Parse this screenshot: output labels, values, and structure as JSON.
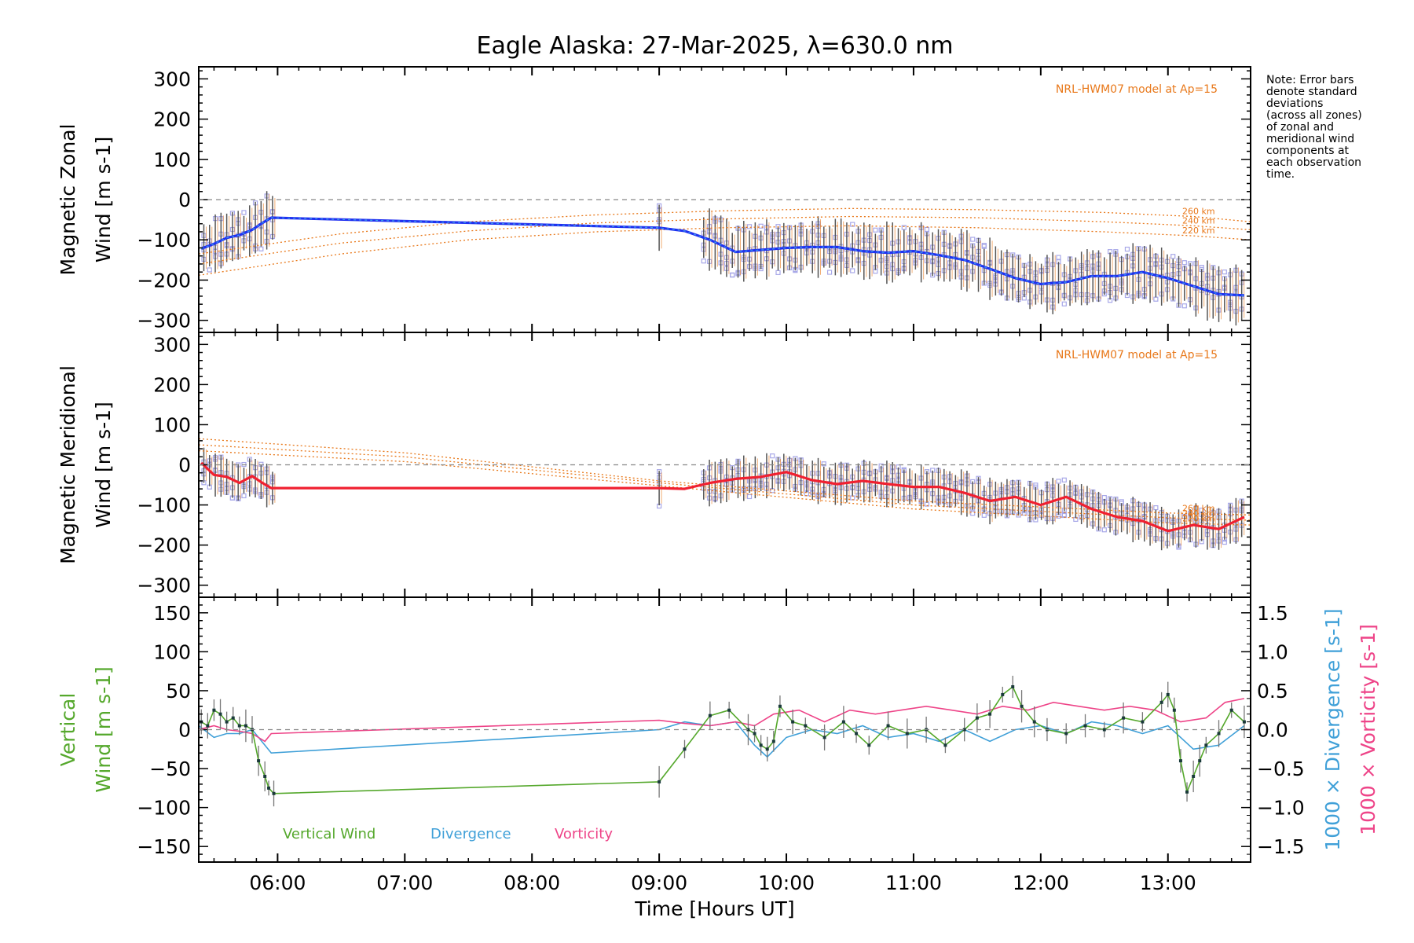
{
  "title": "Eagle Alaska: 27-Mar-2025, λ=630.0 nm",
  "xlabel": "Time [Hours UT]",
  "xticks": [
    "06:00",
    "07:00",
    "08:00",
    "09:00",
    "10:00",
    "11:00",
    "12:00",
    "13:00"
  ],
  "note_lines": [
    "Note: Error bars",
    "denote standard",
    "deviations",
    "(across all zones)",
    "of zonal and",
    "meridional wind",
    "components at",
    "each observation",
    "time."
  ],
  "colors": {
    "zonal": "#2030f0",
    "zonal_light": "#3aa0ee",
    "meridional": "#f02030",
    "model": "#e8781a",
    "scatter": "#a8a8e8",
    "vertical": "#55a82c",
    "divergence": "#40a0d8",
    "vorticity": "#ee4488",
    "errbar": "#555555"
  },
  "chart_data": [
    {
      "type": "line",
      "panel": "zonal",
      "ylabel_lines": [
        "Magnetic Zonal",
        "Wind [m s-1]"
      ],
      "xlim": [
        5.38,
        13.65
      ],
      "ylim": [
        -330,
        330
      ],
      "yticks": [
        -300,
        -200,
        -100,
        0,
        100,
        200,
        300
      ],
      "model_label": "NRL-HWM07 model at Ap=15",
      "model_altitudes": [
        "260 km",
        "240 km",
        "220 km"
      ],
      "series": [
        {
          "name": "Zonal wind",
          "x": [
            5.4,
            5.5,
            5.6,
            5.7,
            5.8,
            5.88,
            5.95,
            9.0,
            9.2,
            9.4,
            9.6,
            9.8,
            10.0,
            10.2,
            10.4,
            10.6,
            10.8,
            11.0,
            11.2,
            11.4,
            11.6,
            11.8,
            12.0,
            12.2,
            12.4,
            12.6,
            12.8,
            13.0,
            13.2,
            13.4,
            13.6
          ],
          "y": [
            -122,
            -110,
            -95,
            -88,
            -75,
            -58,
            -45,
            -70,
            -78,
            -100,
            -130,
            -125,
            -120,
            -118,
            -118,
            -128,
            -132,
            -128,
            -138,
            -150,
            -172,
            -195,
            -210,
            -205,
            -190,
            -190,
            -180,
            -195,
            -215,
            -235,
            -238
          ]
        },
        {
          "name": "Zonal error bar",
          "err": 60
        },
        {
          "name": "HWM07 260 km",
          "x": [
            5.38,
            6.5,
            7.5,
            8.5,
            9.5,
            10.5,
            11.5,
            12.5,
            13.2,
            13.65
          ],
          "y": [
            -135,
            -85,
            -55,
            -38,
            -28,
            -22,
            -25,
            -32,
            -42,
            -55
          ]
        },
        {
          "name": "HWM07 240 km",
          "x": [
            5.38,
            6.5,
            7.5,
            8.5,
            9.5,
            10.5,
            11.5,
            12.5,
            13.2,
            13.65
          ],
          "y": [
            -160,
            -108,
            -78,
            -58,
            -48,
            -42,
            -45,
            -55,
            -65,
            -75
          ]
        },
        {
          "name": "HWM07 220 km",
          "x": [
            5.38,
            6.5,
            7.5,
            8.5,
            9.5,
            10.5,
            11.5,
            12.5,
            13.2,
            13.65
          ],
          "y": [
            -188,
            -135,
            -100,
            -80,
            -70,
            -65,
            -70,
            -80,
            -90,
            -100
          ]
        }
      ]
    },
    {
      "type": "line",
      "panel": "meridional",
      "ylabel_lines": [
        "Magnetic Meridional",
        "Wind [m s-1]"
      ],
      "xlim": [
        5.38,
        13.65
      ],
      "ylim": [
        -330,
        330
      ],
      "yticks": [
        -300,
        -200,
        -100,
        0,
        100,
        200,
        300
      ],
      "model_label": "NRL-HWM07 model at Ap=15",
      "model_altitudes": [
        "260 km",
        "240 km",
        "220 km"
      ],
      "series": [
        {
          "name": "Meridional wind",
          "x": [
            5.4,
            5.5,
            5.6,
            5.7,
            5.8,
            5.88,
            5.95,
            9.0,
            9.2,
            9.4,
            9.6,
            9.8,
            10.0,
            10.2,
            10.4,
            10.6,
            10.8,
            11.0,
            11.2,
            11.4,
            11.6,
            11.8,
            12.0,
            12.2,
            12.4,
            12.6,
            12.8,
            13.0,
            13.2,
            13.4,
            13.6
          ],
          "y": [
            5,
            -25,
            -30,
            -45,
            -28,
            -45,
            -58,
            -58,
            -60,
            -45,
            -35,
            -30,
            -18,
            -38,
            -48,
            -40,
            -48,
            -55,
            -55,
            -70,
            -90,
            -80,
            -100,
            -80,
            -110,
            -130,
            -140,
            -165,
            -150,
            -160,
            -130
          ]
        },
        {
          "name": "Meridional error bar",
          "err": 45
        },
        {
          "name": "HWM07 260 km",
          "x": [
            5.38,
            7.0,
            9.0,
            11.0,
            13.0,
            13.65
          ],
          "y": [
            65,
            30,
            -40,
            -90,
            -120,
            -125
          ]
        },
        {
          "name": "HWM07 240 km",
          "x": [
            5.38,
            7.0,
            9.0,
            11.0,
            13.0,
            13.65
          ],
          "y": [
            50,
            20,
            -45,
            -100,
            -132,
            -138
          ]
        },
        {
          "name": "HWM07 220 km",
          "x": [
            5.38,
            7.0,
            9.0,
            11.0,
            13.0,
            13.65
          ],
          "y": [
            35,
            8,
            -52,
            -110,
            -145,
            -150
          ]
        }
      ]
    },
    {
      "type": "line",
      "panel": "vertical",
      "ylabel_lines": [
        "Vertical",
        "Wind [m s-1]"
      ],
      "y2label_divergence": "1000 × Divergence [s-1]",
      "y2label_vorticity": "1000 × Vorticity [s-1]",
      "xlim": [
        5.38,
        13.65
      ],
      "ylim": [
        -170,
        170
      ],
      "yticks": [
        -150,
        -100,
        -50,
        0,
        50,
        100,
        150
      ],
      "y2lim": [
        -1.7,
        1.7
      ],
      "y2ticks": [
        "-1.5",
        "-1.0",
        "-0.5",
        "0.0",
        "0.5",
        "1.0",
        "1.5"
      ],
      "legend": [
        "Vertical Wind",
        "Divergence",
        "Vorticity"
      ],
      "series": [
        {
          "name": "Vertical Wind",
          "x": [
            5.4,
            5.45,
            5.5,
            5.55,
            5.6,
            5.65,
            5.7,
            5.75,
            5.8,
            5.85,
            5.9,
            5.93,
            5.97,
            9.0,
            9.2,
            9.4,
            9.55,
            9.7,
            9.75,
            9.8,
            9.85,
            9.9,
            9.95,
            10.05,
            10.15,
            10.3,
            10.45,
            10.55,
            10.65,
            10.8,
            10.95,
            11.1,
            11.25,
            11.4,
            11.5,
            11.6,
            11.7,
            11.78,
            11.85,
            11.95,
            12.05,
            12.2,
            12.35,
            12.5,
            12.65,
            12.8,
            12.95,
            13.0,
            13.05,
            13.1,
            13.15,
            13.2,
            13.25,
            13.3,
            13.4,
            13.5,
            13.6
          ],
          "y": [
            10,
            5,
            25,
            20,
            10,
            15,
            5,
            5,
            0,
            -40,
            -60,
            -75,
            -82,
            -67,
            -25,
            18,
            25,
            0,
            -5,
            -20,
            -25,
            -15,
            30,
            10,
            5,
            -10,
            10,
            -5,
            -20,
            5,
            -5,
            0,
            -20,
            0,
            15,
            20,
            45,
            55,
            30,
            10,
            0,
            -5,
            5,
            0,
            15,
            10,
            35,
            45,
            25,
            -40,
            -80,
            -60,
            -40,
            -20,
            -5,
            25,
            10
          ],
          "err": 15
        },
        {
          "name": "Divergence",
          "x": [
            5.38,
            5.5,
            5.6,
            5.7,
            5.8,
            5.9,
            5.95,
            9.0,
            9.2,
            9.4,
            9.6,
            9.75,
            9.85,
            10.0,
            10.2,
            10.4,
            10.6,
            10.8,
            11.0,
            11.2,
            11.4,
            11.6,
            11.8,
            12.0,
            12.2,
            12.4,
            12.6,
            12.8,
            13.0,
            13.2,
            13.4,
            13.6
          ],
          "y": [
            0.05,
            -0.1,
            -0.05,
            -0.05,
            0.0,
            -0.2,
            -0.3,
            0.0,
            0.1,
            0.05,
            0.1,
            -0.2,
            -0.35,
            -0.1,
            0.0,
            -0.05,
            0.05,
            -0.1,
            -0.05,
            -0.15,
            0.0,
            -0.15,
            0.0,
            0.05,
            -0.05,
            0.1,
            0.05,
            -0.05,
            0.05,
            -0.25,
            -0.2,
            0.05
          ]
        },
        {
          "name": "Vorticity",
          "x": [
            5.38,
            5.5,
            5.6,
            5.7,
            5.8,
            5.9,
            5.95,
            9.0,
            9.2,
            9.4,
            9.6,
            9.75,
            9.9,
            10.1,
            10.3,
            10.5,
            10.7,
            10.9,
            11.1,
            11.3,
            11.5,
            11.7,
            11.9,
            12.1,
            12.3,
            12.5,
            12.7,
            12.9,
            13.1,
            13.3,
            13.45,
            13.6
          ],
          "y": [
            0.0,
            0.05,
            0.0,
            -0.02,
            -0.05,
            -0.15,
            -0.05,
            0.12,
            0.08,
            0.05,
            0.1,
            0.05,
            0.2,
            0.25,
            0.1,
            0.25,
            0.2,
            0.25,
            0.3,
            0.25,
            0.2,
            0.3,
            0.25,
            0.35,
            0.3,
            0.25,
            0.3,
            0.25,
            0.1,
            0.15,
            0.35,
            0.4
          ]
        }
      ]
    }
  ]
}
